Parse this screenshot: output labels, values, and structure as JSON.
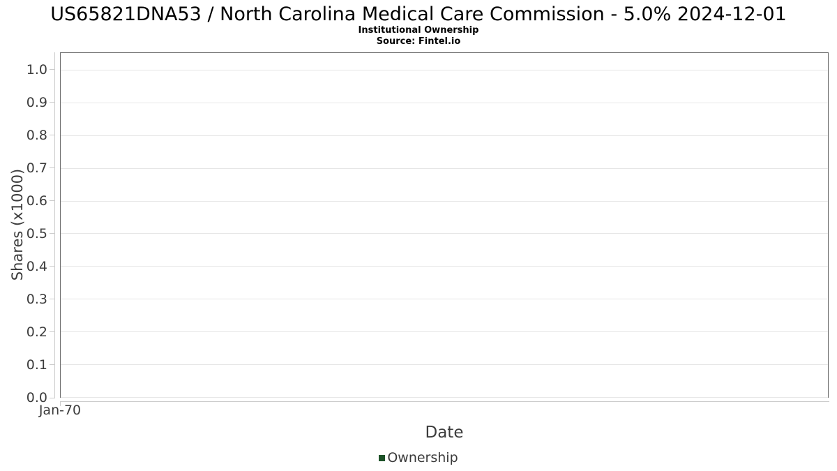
{
  "header": {
    "title": "US65821DNA53 / North Carolina Medical Care Commission - 5.0% 2024-12-01",
    "subtitle": "Institutional Ownership",
    "source": "Source: Fintel.io"
  },
  "chart_data": {
    "type": "line",
    "title": "US65821DNA53 / North Carolina Medical Care Commission - 5.0% 2024-12-01",
    "subtitle": "Institutional Ownership",
    "source_note": "Source: Fintel.io",
    "xlabel": "Date",
    "ylabel": "Shares (x1000)",
    "x": [],
    "series": [
      {
        "name": "Ownership",
        "color": "#1d5228",
        "values": []
      }
    ],
    "xticks": [
      "Jan-70"
    ],
    "yticks": [
      "0.0",
      "0.1",
      "0.2",
      "0.3",
      "0.4",
      "0.5",
      "0.6",
      "0.7",
      "0.8",
      "0.9",
      "1.0"
    ],
    "ylim": [
      0,
      1.053
    ],
    "grid": "horizontal",
    "legend_position": "bottom-center"
  },
  "colors": {
    "gridline": "#e6e6e6",
    "axis_line": "#cccccc",
    "plot_border": "#6a6a6a",
    "axis_text": "#3c3c3c",
    "series_green": "#1d5228"
  }
}
